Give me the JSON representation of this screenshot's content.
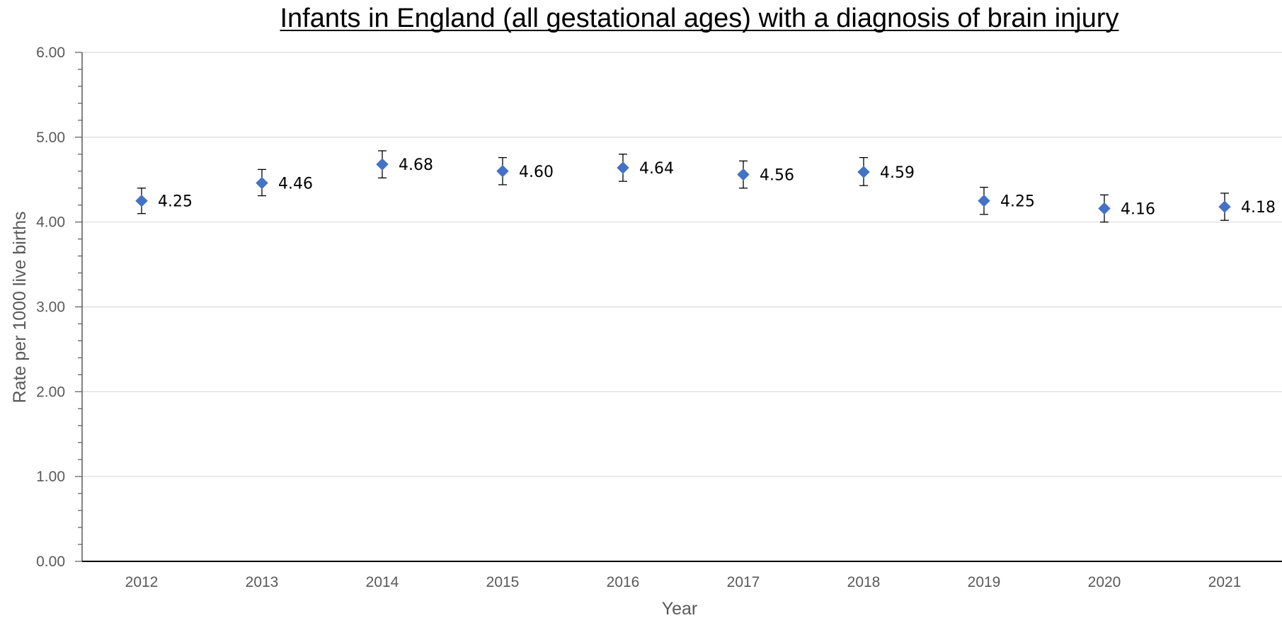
{
  "chart_data": {
    "type": "scatter",
    "title": "Infants in England (all gestational ages) with a diagnosis of brain injury",
    "xlabel": "Year",
    "ylabel": "Rate per 1000 live births",
    "ylim": [
      0,
      6
    ],
    "yticks": [
      "0.00",
      "1.00",
      "2.00",
      "3.00",
      "4.00",
      "5.00",
      "6.00"
    ],
    "grid": true,
    "legend": "none",
    "marker_color": "#4472C4",
    "categories": [
      "2012",
      "2013",
      "2014",
      "2015",
      "2016",
      "2017",
      "2018",
      "2019",
      "2020",
      "2021"
    ],
    "series": [
      {
        "values": [
          4.25,
          4.46,
          4.68,
          4.6,
          4.64,
          4.56,
          4.59,
          4.25,
          4.16,
          4.18
        ],
        "labels": [
          "4.25",
          "4.46",
          "4.68",
          "4.60",
          "4.64",
          "4.56",
          "4.59",
          "4.25",
          "4.16",
          "4.18"
        ],
        "error_low": [
          4.1,
          4.31,
          4.52,
          4.44,
          4.48,
          4.4,
          4.43,
          4.09,
          4.0,
          4.02
        ],
        "error_high": [
          4.4,
          4.62,
          4.84,
          4.76,
          4.8,
          4.72,
          4.76,
          4.41,
          4.32,
          4.34
        ]
      }
    ]
  }
}
